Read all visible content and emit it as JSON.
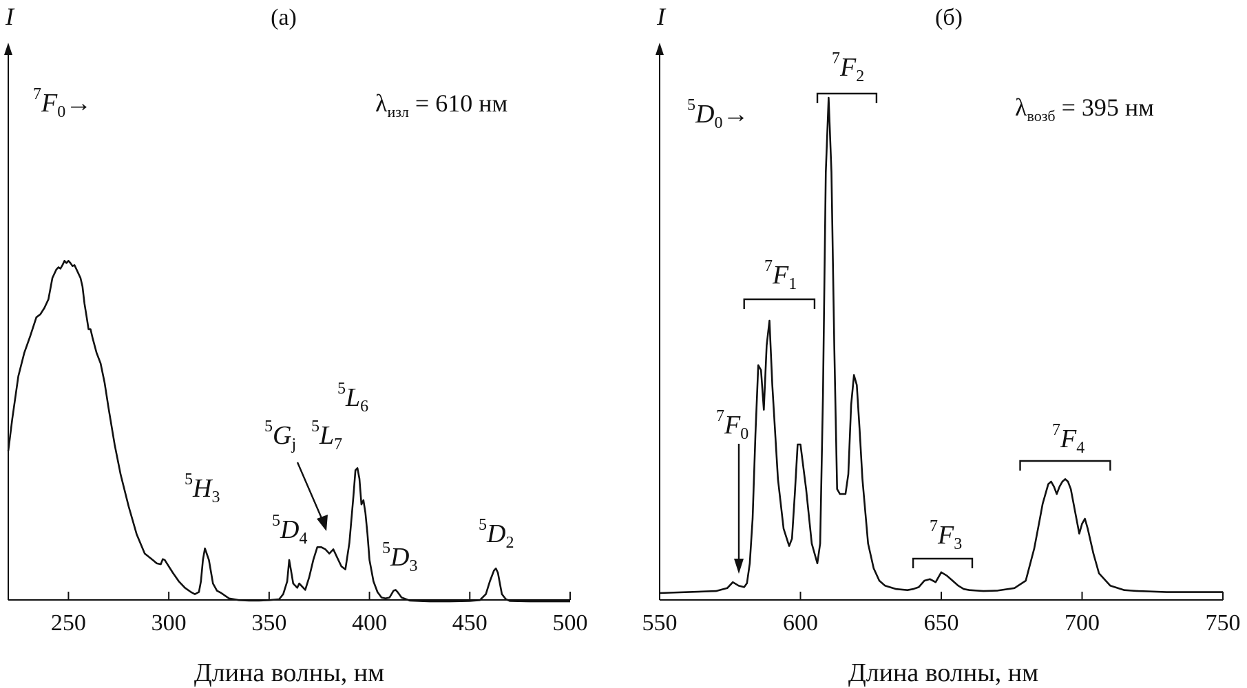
{
  "chart_data": [
    {
      "type": "line",
      "panel_label": "(а)",
      "ylabel": "I",
      "xlabel": "Длина волны, нм",
      "xlim": [
        220,
        500
      ],
      "ylim": [
        0,
        1.0
      ],
      "x_ticks": [
        250,
        300,
        350,
        400,
        450,
        500
      ],
      "y_ticks": [],
      "grid": false,
      "transition_label": {
        "sup": "7",
        "sym": "F",
        "sub": "0",
        "arrow": "→"
      },
      "parameter": {
        "symbol": "λ",
        "sub": "изл",
        "rest": " = 610 нм"
      },
      "series": [
        {
          "name": "",
          "x": [
            220,
            222,
            225,
            228,
            231,
            234,
            236,
            238,
            240,
            242,
            244,
            245,
            246,
            247,
            248,
            249,
            250,
            251,
            252,
            253,
            254,
            255,
            256,
            257,
            258,
            259,
            260,
            261,
            262,
            264,
            266,
            268,
            270,
            273,
            276,
            280,
            284,
            288,
            292,
            294,
            296,
            297,
            298,
            300,
            302,
            305,
            308,
            311,
            313,
            315,
            316,
            317,
            318,
            320,
            322,
            324,
            326,
            330,
            335,
            340,
            345,
            350,
            355,
            357,
            359,
            360,
            361,
            362,
            364,
            365,
            366,
            368,
            370,
            372,
            374,
            376,
            378,
            380,
            382,
            384,
            386,
            388,
            390,
            392,
            393,
            394,
            395,
            396,
            397,
            398,
            399,
            400,
            402,
            404,
            406,
            408,
            410,
            412,
            413,
            414,
            416,
            420,
            430,
            440,
            450,
            455,
            458,
            460,
            462,
            463,
            464,
            465,
            466,
            468,
            470,
            480,
            490,
            500
          ],
          "y": [
            0.355,
            0.43,
            0.53,
            0.585,
            0.625,
            0.668,
            0.675,
            0.69,
            0.71,
            0.76,
            0.78,
            0.785,
            0.782,
            0.79,
            0.8,
            0.795,
            0.8,
            0.795,
            0.788,
            0.79,
            0.78,
            0.77,
            0.76,
            0.74,
            0.7,
            0.67,
            0.64,
            0.64,
            0.62,
            0.585,
            0.56,
            0.515,
            0.455,
            0.37,
            0.3,
            0.225,
            0.16,
            0.115,
            0.1,
            0.092,
            0.09,
            0.102,
            0.1,
            0.085,
            0.07,
            0.05,
            0.035,
            0.025,
            0.02,
            0.025,
            0.05,
            0.1,
            0.127,
            0.1,
            0.045,
            0.028,
            0.023,
            0.01,
            0.006,
            0.005,
            0.005,
            0.006,
            0.008,
            0.02,
            0.05,
            0.1,
            0.073,
            0.045,
            0.035,
            0.045,
            0.04,
            0.03,
            0.06,
            0.1,
            0.13,
            0.13,
            0.125,
            0.115,
            0.125,
            0.105,
            0.085,
            0.078,
            0.14,
            0.25,
            0.31,
            0.315,
            0.29,
            0.23,
            0.24,
            0.21,
            0.16,
            0.1,
            0.05,
            0.025,
            0.012,
            0.01,
            0.012,
            0.028,
            0.03,
            0.025,
            0.012,
            0.005,
            0.003,
            0.003,
            0.004,
            0.006,
            0.02,
            0.05,
            0.075,
            0.08,
            0.07,
            0.045,
            0.02,
            0.008,
            0.004,
            0.003,
            0.003,
            0.003
          ]
        }
      ],
      "annotations": [
        {
          "sup": "5",
          "sym": "H",
          "sub": "3",
          "x": 317,
          "y": 0.127
        },
        {
          "sup": "5",
          "sym": "D",
          "sub": "4",
          "x": 361,
          "y": 0.1
        },
        {
          "sup": "5",
          "sym": "G",
          "sub": "j",
          "x": 378,
          "y": 0.13
        },
        {
          "sup": "5",
          "sym": "L",
          "sub": "7",
          "x": 384,
          "y": 0.13
        },
        {
          "sup": "5",
          "sym": "L",
          "sub": "6",
          "x": 394,
          "y": 0.315
        },
        {
          "sup": "5",
          "sym": "D",
          "sub": "3",
          "x": 413,
          "y": 0.03
        },
        {
          "sup": "5",
          "sym": "D",
          "sub": "2",
          "x": 464,
          "y": 0.08
        }
      ]
    },
    {
      "type": "line",
      "panel_label": "(б)",
      "ylabel": "I",
      "xlabel": "Длина волны, нм",
      "xlim": [
        550,
        750
      ],
      "ylim": [
        0,
        1.0
      ],
      "x_ticks": [
        550,
        600,
        650,
        700,
        750
      ],
      "y_ticks": [],
      "grid": false,
      "transition_label": {
        "sup": "5",
        "sym": "D",
        "sub": "0",
        "arrow": "→"
      },
      "parameter": {
        "symbol": "λ",
        "sub": "возб",
        "rest": " = 395 нм"
      },
      "series": [
        {
          "name": "",
          "x": [
            550,
            560,
            570,
            574,
            576,
            578,
            580,
            581,
            582,
            583,
            584,
            585,
            586,
            587,
            588,
            589,
            590,
            592,
            594,
            596,
            597,
            598,
            599,
            600,
            602,
            604,
            606,
            607,
            608,
            609,
            610,
            611,
            612,
            613,
            614,
            615,
            616,
            617,
            618,
            619,
            620,
            621,
            622,
            624,
            626,
            628,
            630,
            634,
            638,
            640,
            642,
            644,
            646,
            648,
            650,
            652,
            654,
            656,
            658,
            660,
            665,
            670,
            676,
            680,
            683,
            685,
            686,
            687,
            688,
            689,
            690,
            691,
            692,
            693,
            694,
            695,
            696,
            697,
            698,
            699,
            700,
            701,
            702,
            704,
            706,
            710,
            715,
            720,
            730,
            740,
            750
          ],
          "y": [
            0,
            0.002,
            0.004,
            0.01,
            0.022,
            0.015,
            0.012,
            0.02,
            0.06,
            0.15,
            0.32,
            0.46,
            0.45,
            0.37,
            0.5,
            0.55,
            0.42,
            0.23,
            0.13,
            0.095,
            0.11,
            0.2,
            0.3,
            0.3,
            0.21,
            0.1,
            0.06,
            0.1,
            0.4,
            0.85,
            1.0,
            0.85,
            0.5,
            0.21,
            0.2,
            0.2,
            0.2,
            0.24,
            0.38,
            0.44,
            0.42,
            0.33,
            0.23,
            0.1,
            0.05,
            0.025,
            0.015,
            0.008,
            0.006,
            0.008,
            0.012,
            0.025,
            0.028,
            0.022,
            0.042,
            0.035,
            0.025,
            0.015,
            0.008,
            0.006,
            0.004,
            0.005,
            0.01,
            0.025,
            0.09,
            0.15,
            0.18,
            0.2,
            0.22,
            0.225,
            0.215,
            0.2,
            0.215,
            0.225,
            0.23,
            0.225,
            0.21,
            0.18,
            0.15,
            0.12,
            0.14,
            0.15,
            0.13,
            0.08,
            0.04,
            0.015,
            0.006,
            0.004,
            0.002,
            0.002,
            0.002
          ]
        }
      ],
      "annotations": [
        {
          "sup": "7",
          "sym": "F",
          "sub": "0",
          "x": 577,
          "y": 0.022
        },
        {
          "sup": "7",
          "sym": "F",
          "sub": "1",
          "x": 592,
          "y": 0.55
        },
        {
          "sup": "7",
          "sym": "F",
          "sub": "2",
          "x": 616,
          "y": 1.0
        },
        {
          "sup": "7",
          "sym": "F",
          "sub": "3",
          "x": 651,
          "y": 0.045
        },
        {
          "sup": "7",
          "sym": "F",
          "sub": "4",
          "x": 694,
          "y": 0.23
        }
      ],
      "brackets": [
        {
          "x1": 580,
          "x2": 605,
          "label_index": 1
        },
        {
          "x1": 606,
          "x2": 627,
          "label_index": 2
        },
        {
          "x1": 640,
          "x2": 661,
          "label_index": 3
        },
        {
          "x1": 678,
          "x2": 710,
          "label_index": 4
        }
      ]
    }
  ]
}
